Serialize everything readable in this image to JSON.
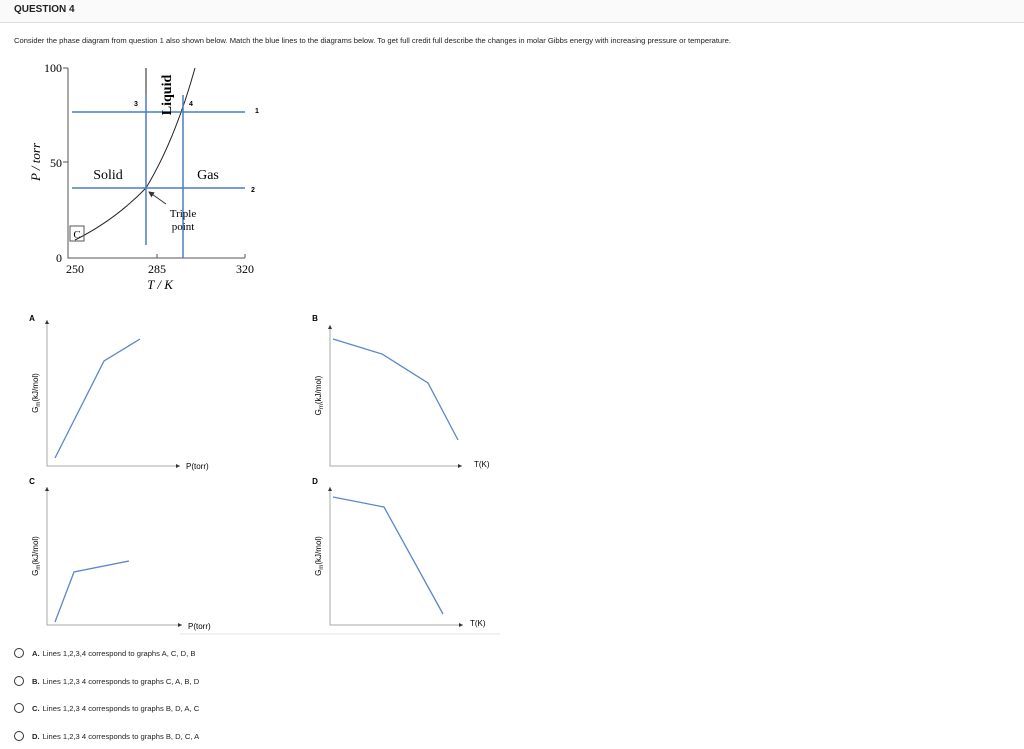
{
  "header": {
    "title": "QUESTION 4"
  },
  "question": "Consider the phase diagram from question 1 also shown below. Match the blue lines to the diagrams below. To get full credit full describe the changes in molar Gibbs energy with increasing pressure or temperature.",
  "phase_diagram": {
    "ylabel": "P / torr",
    "xlabel": "T / K",
    "yticks": [
      "100",
      "50",
      "0"
    ],
    "xticks": [
      "250",
      "285",
      "320"
    ],
    "regions": {
      "solid": "Solid",
      "liquid": "Liquid",
      "gas": "Gas"
    },
    "triple": [
      "Triple",
      "point"
    ],
    "critical": "C",
    "lines": [
      "1",
      "2",
      "3",
      "4"
    ]
  },
  "graphs": [
    {
      "label": "A",
      "ylabel": {
        "main": "G",
        "sub": "m",
        "rest": "(kJ/mol)"
      },
      "xlabel": "P(torr)"
    },
    {
      "label": "B",
      "ylabel": {
        "main": "G",
        "sub": "m",
        "rest": "(kJ/mol)"
      },
      "xlabel": "T(K)"
    },
    {
      "label": "C",
      "ylabel": {
        "main": "G",
        "sub": "m",
        "rest": "(kJ/mol)"
      },
      "xlabel": "P(torr)"
    },
    {
      "label": "D",
      "ylabel": {
        "main": "G",
        "sub": "m",
        "rest": "(kJ/mol)"
      },
      "xlabel": "T(K)"
    }
  ],
  "options": [
    {
      "letter": "A.",
      "text": "Lines 1,2,3,4 correspond to graphs A, C, D, B"
    },
    {
      "letter": "B.",
      "text": "Lines 1,2,3 4 corresponds to graphs C, A, B, D"
    },
    {
      "letter": "C.",
      "text": "Lines 1,2,3 4 corresponds to graphs B, D, A, C"
    },
    {
      "letter": "D.",
      "text": "Lines 1,2,3 4 corresponds to graphs B, D, C, A"
    }
  ]
}
